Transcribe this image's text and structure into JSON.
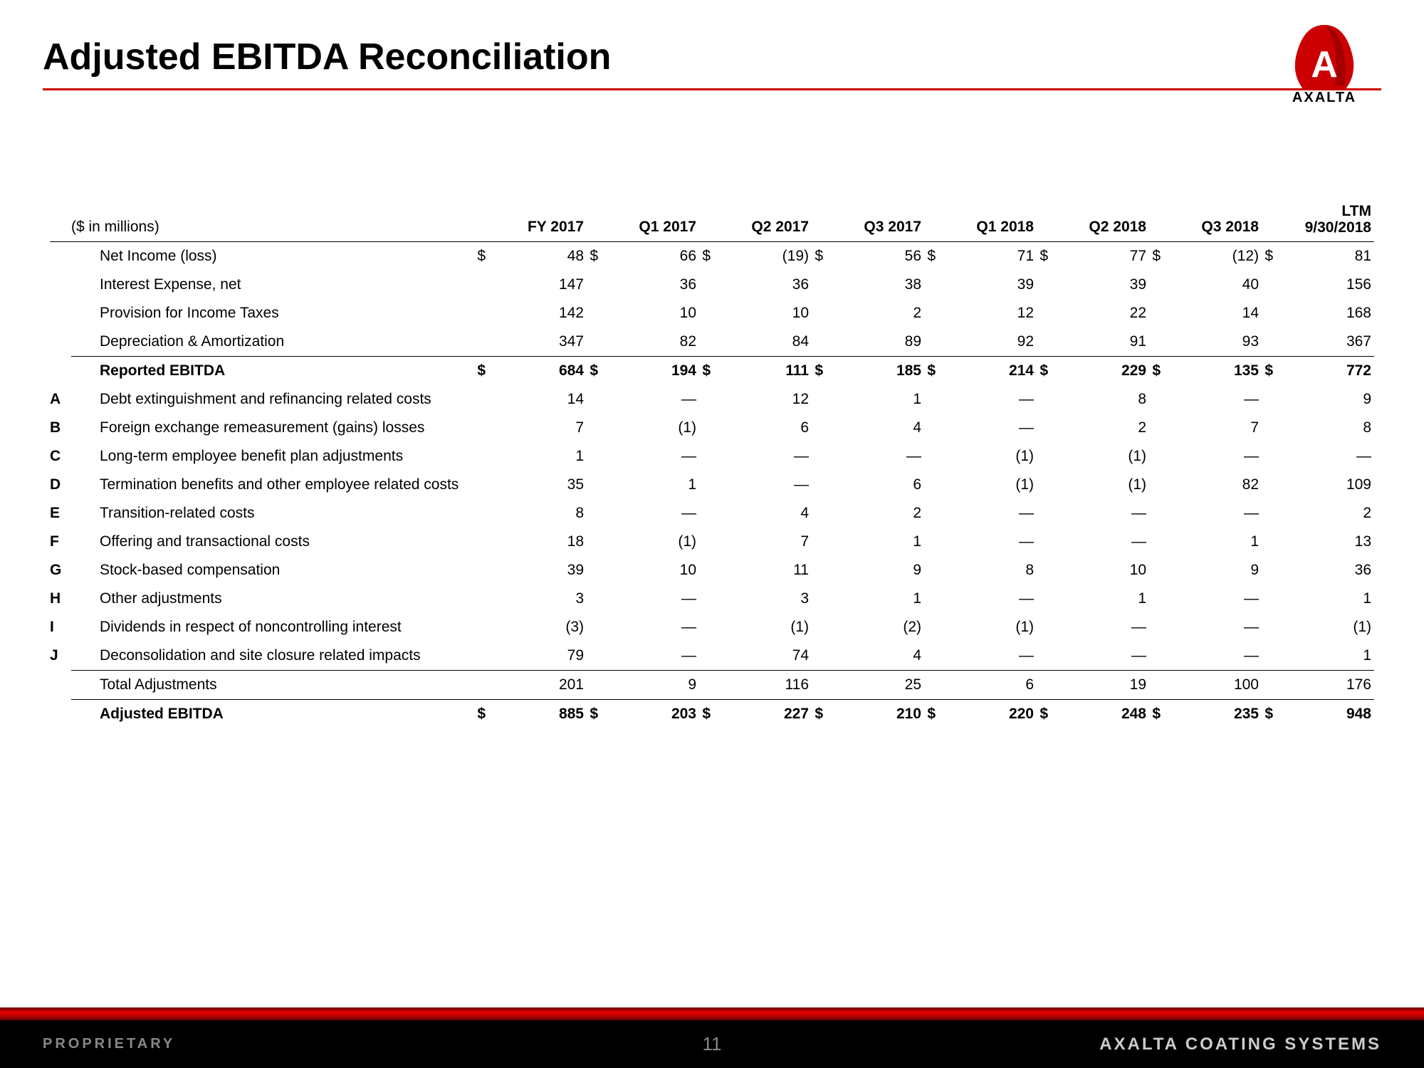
{
  "title": "Adjusted EBITDA Reconciliation",
  "brand": {
    "logo_text": "AXALTA",
    "logo_letter": "A",
    "footer_right": "AXALTA COATING SYSTEMS"
  },
  "footer": {
    "left": "PROPRIETARY",
    "page": "11"
  },
  "table": {
    "units_label": "($ in millions)",
    "columns": [
      "FY 2017",
      "Q1 2017",
      "Q2 2017",
      "Q3 2017",
      "Q1 2018",
      "Q2 2018",
      "Q3 2018"
    ],
    "ltm_header_top": "LTM",
    "ltm_header_bottom": "9/30/2018",
    "rows": [
      {
        "prefix": "",
        "label": "Net Income (loss)",
        "dollar": true,
        "values": [
          "48",
          "66",
          "(19)",
          "56",
          "71",
          "77",
          "(12)",
          "81"
        ]
      },
      {
        "prefix": "",
        "label": "Interest Expense, net",
        "dollar": false,
        "values": [
          "147",
          "36",
          "36",
          "38",
          "39",
          "39",
          "40",
          "156"
        ]
      },
      {
        "prefix": "",
        "label": "Provision for Income Taxes",
        "dollar": false,
        "values": [
          "142",
          "10",
          "10",
          "2",
          "12",
          "22",
          "14",
          "168"
        ]
      },
      {
        "prefix": "",
        "label": "Depreciation & Amortization",
        "dollar": false,
        "values": [
          "347",
          "82",
          "84",
          "89",
          "92",
          "91",
          "93",
          "367"
        ],
        "underline": true
      },
      {
        "prefix": "",
        "label": "Reported EBITDA",
        "dollar": true,
        "bold": true,
        "values": [
          "684",
          "194",
          "111",
          "185",
          "214",
          "229",
          "135",
          "772"
        ]
      },
      {
        "prefix": "A",
        "label": "Debt extinguishment and refinancing related costs",
        "dollar": false,
        "values": [
          "14",
          "—",
          "12",
          "1",
          "—",
          "8",
          "—",
          "9"
        ]
      },
      {
        "prefix": "B",
        "label": "Foreign exchange remeasurement (gains) losses",
        "dollar": false,
        "values": [
          "7",
          "(1)",
          "6",
          "4",
          "—",
          "2",
          "7",
          "8"
        ]
      },
      {
        "prefix": "C",
        "label": "Long-term employee benefit plan adjustments",
        "dollar": false,
        "values": [
          "1",
          "—",
          "—",
          "—",
          "(1)",
          "(1)",
          "—",
          "—"
        ]
      },
      {
        "prefix": "D",
        "label": "Termination benefits and other employee related costs",
        "dollar": false,
        "values": [
          "35",
          "1",
          "—",
          "6",
          "(1)",
          "(1)",
          "82",
          "109"
        ]
      },
      {
        "prefix": "E",
        "label": "Transition-related costs",
        "dollar": false,
        "values": [
          "8",
          "—",
          "4",
          "2",
          "—",
          "—",
          "—",
          "2"
        ]
      },
      {
        "prefix": "F",
        "label": "Offering and transactional costs",
        "dollar": false,
        "values": [
          "18",
          "(1)",
          "7",
          "1",
          "—",
          "—",
          "1",
          "13"
        ]
      },
      {
        "prefix": "G",
        "label": "Stock-based compensation",
        "dollar": false,
        "values": [
          "39",
          "10",
          "11",
          "9",
          "8",
          "10",
          "9",
          "36"
        ]
      },
      {
        "prefix": "H",
        "label": "Other adjustments",
        "dollar": false,
        "values": [
          "3",
          "—",
          "3",
          "1",
          "—",
          "1",
          "—",
          "1"
        ]
      },
      {
        "prefix": "I",
        "label": "Dividends in respect of noncontrolling interest",
        "dollar": false,
        "values": [
          "(3)",
          "—",
          "(1)",
          "(2)",
          "(1)",
          "—",
          "—",
          "(1)"
        ]
      },
      {
        "prefix": "J",
        "label": "Deconsolidation and site closure related impacts",
        "dollar": false,
        "values": [
          "79",
          "—",
          "74",
          "4",
          "—",
          "—",
          "—",
          "1"
        ],
        "underline": true
      },
      {
        "prefix": "",
        "label": "Total Adjustments",
        "dollar": false,
        "values": [
          "201",
          "9",
          "116",
          "25",
          "6",
          "19",
          "100",
          "176"
        ],
        "underline": true
      },
      {
        "prefix": "",
        "label": "Adjusted EBITDA",
        "dollar": true,
        "bold": true,
        "values": [
          "885",
          "203",
          "227",
          "210",
          "220",
          "248",
          "235",
          "948"
        ]
      }
    ]
  },
  "colors": {
    "brand_red": "#cc0000",
    "text": "#000000",
    "footer_bg": "#000000"
  }
}
